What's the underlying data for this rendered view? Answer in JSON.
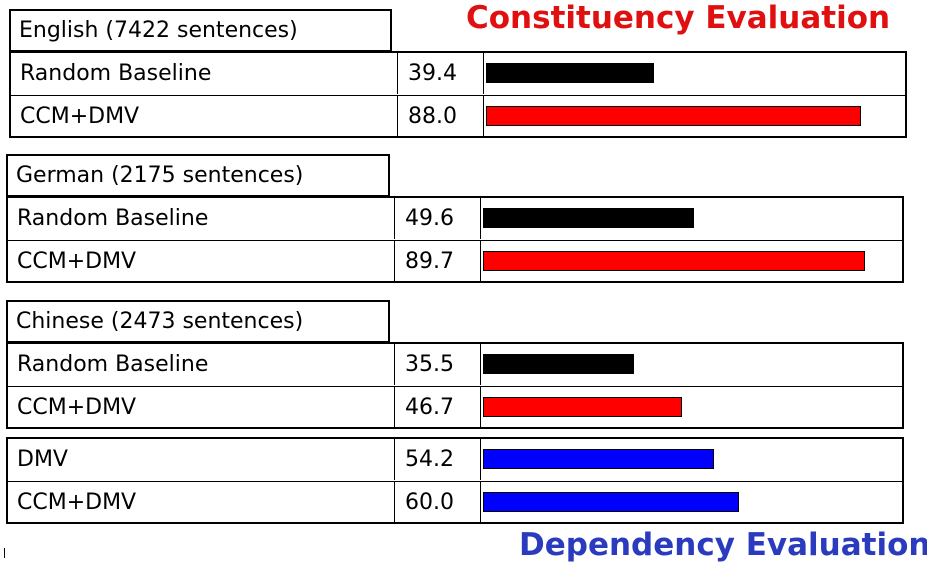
{
  "titles": {
    "constituency": "Constituency Evaluation",
    "dependency": "Dependency Evaluation"
  },
  "colors": {
    "constituency_title": "#e01010",
    "dependency_title": "#2a3bbd",
    "baseline_bar": "#000000",
    "ccm_dmv_bar": "#ff0000",
    "dependency_bar": "#0000ff"
  },
  "chart_data": {
    "type": "bar",
    "orientation": "horizontal",
    "xlim": [
      0,
      100
    ],
    "groups": [
      {
        "header": "English (7422 sentences)",
        "evaluation": "constituency",
        "rows": [
          {
            "label": "Random Baseline",
            "value": 39.4,
            "color": "#000000"
          },
          {
            "label": "CCM+DMV",
            "value": 88.0,
            "color": "#ff0000"
          }
        ]
      },
      {
        "header": "German (2175 sentences)",
        "evaluation": "constituency",
        "rows": [
          {
            "label": "Random Baseline",
            "value": 49.6,
            "color": "#000000"
          },
          {
            "label": "CCM+DMV",
            "value": 89.7,
            "color": "#ff0000"
          }
        ]
      },
      {
        "header": "Chinese (2473 sentences)",
        "evaluation": "constituency",
        "rows": [
          {
            "label": "Random Baseline",
            "value": 35.5,
            "color": "#000000"
          },
          {
            "label": "CCM+DMV",
            "value": 46.7,
            "color": "#ff0000"
          }
        ]
      },
      {
        "header": "",
        "evaluation": "dependency",
        "rows": [
          {
            "label": "DMV",
            "value": 54.2,
            "color": "#0000ff"
          },
          {
            "label": "CCM+DMV",
            "value": 60.0,
            "color": "#0000ff"
          }
        ]
      }
    ]
  }
}
